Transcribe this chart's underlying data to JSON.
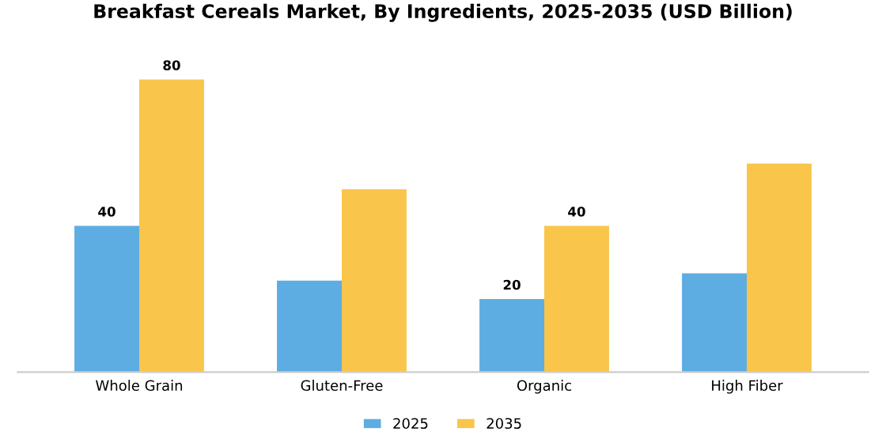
{
  "chart_data": {
    "type": "bar",
    "title": "Breakfast Cereals Market, By Ingredients, 2025-2035 (USD Billion)",
    "categories": [
      "Whole Grain",
      "Gluten-Free",
      "Organic",
      "High Fiber"
    ],
    "series": [
      {
        "name": "2025",
        "color": "#5dade2",
        "values": [
          40,
          25,
          20,
          27
        ],
        "value_labels": [
          "40",
          null,
          "20",
          null
        ]
      },
      {
        "name": "2035",
        "color": "#f9c54a",
        "values": [
          80,
          50,
          40,
          57
        ],
        "value_labels": [
          "80",
          null,
          "40",
          null
        ]
      }
    ],
    "legend": "bottom"
  }
}
